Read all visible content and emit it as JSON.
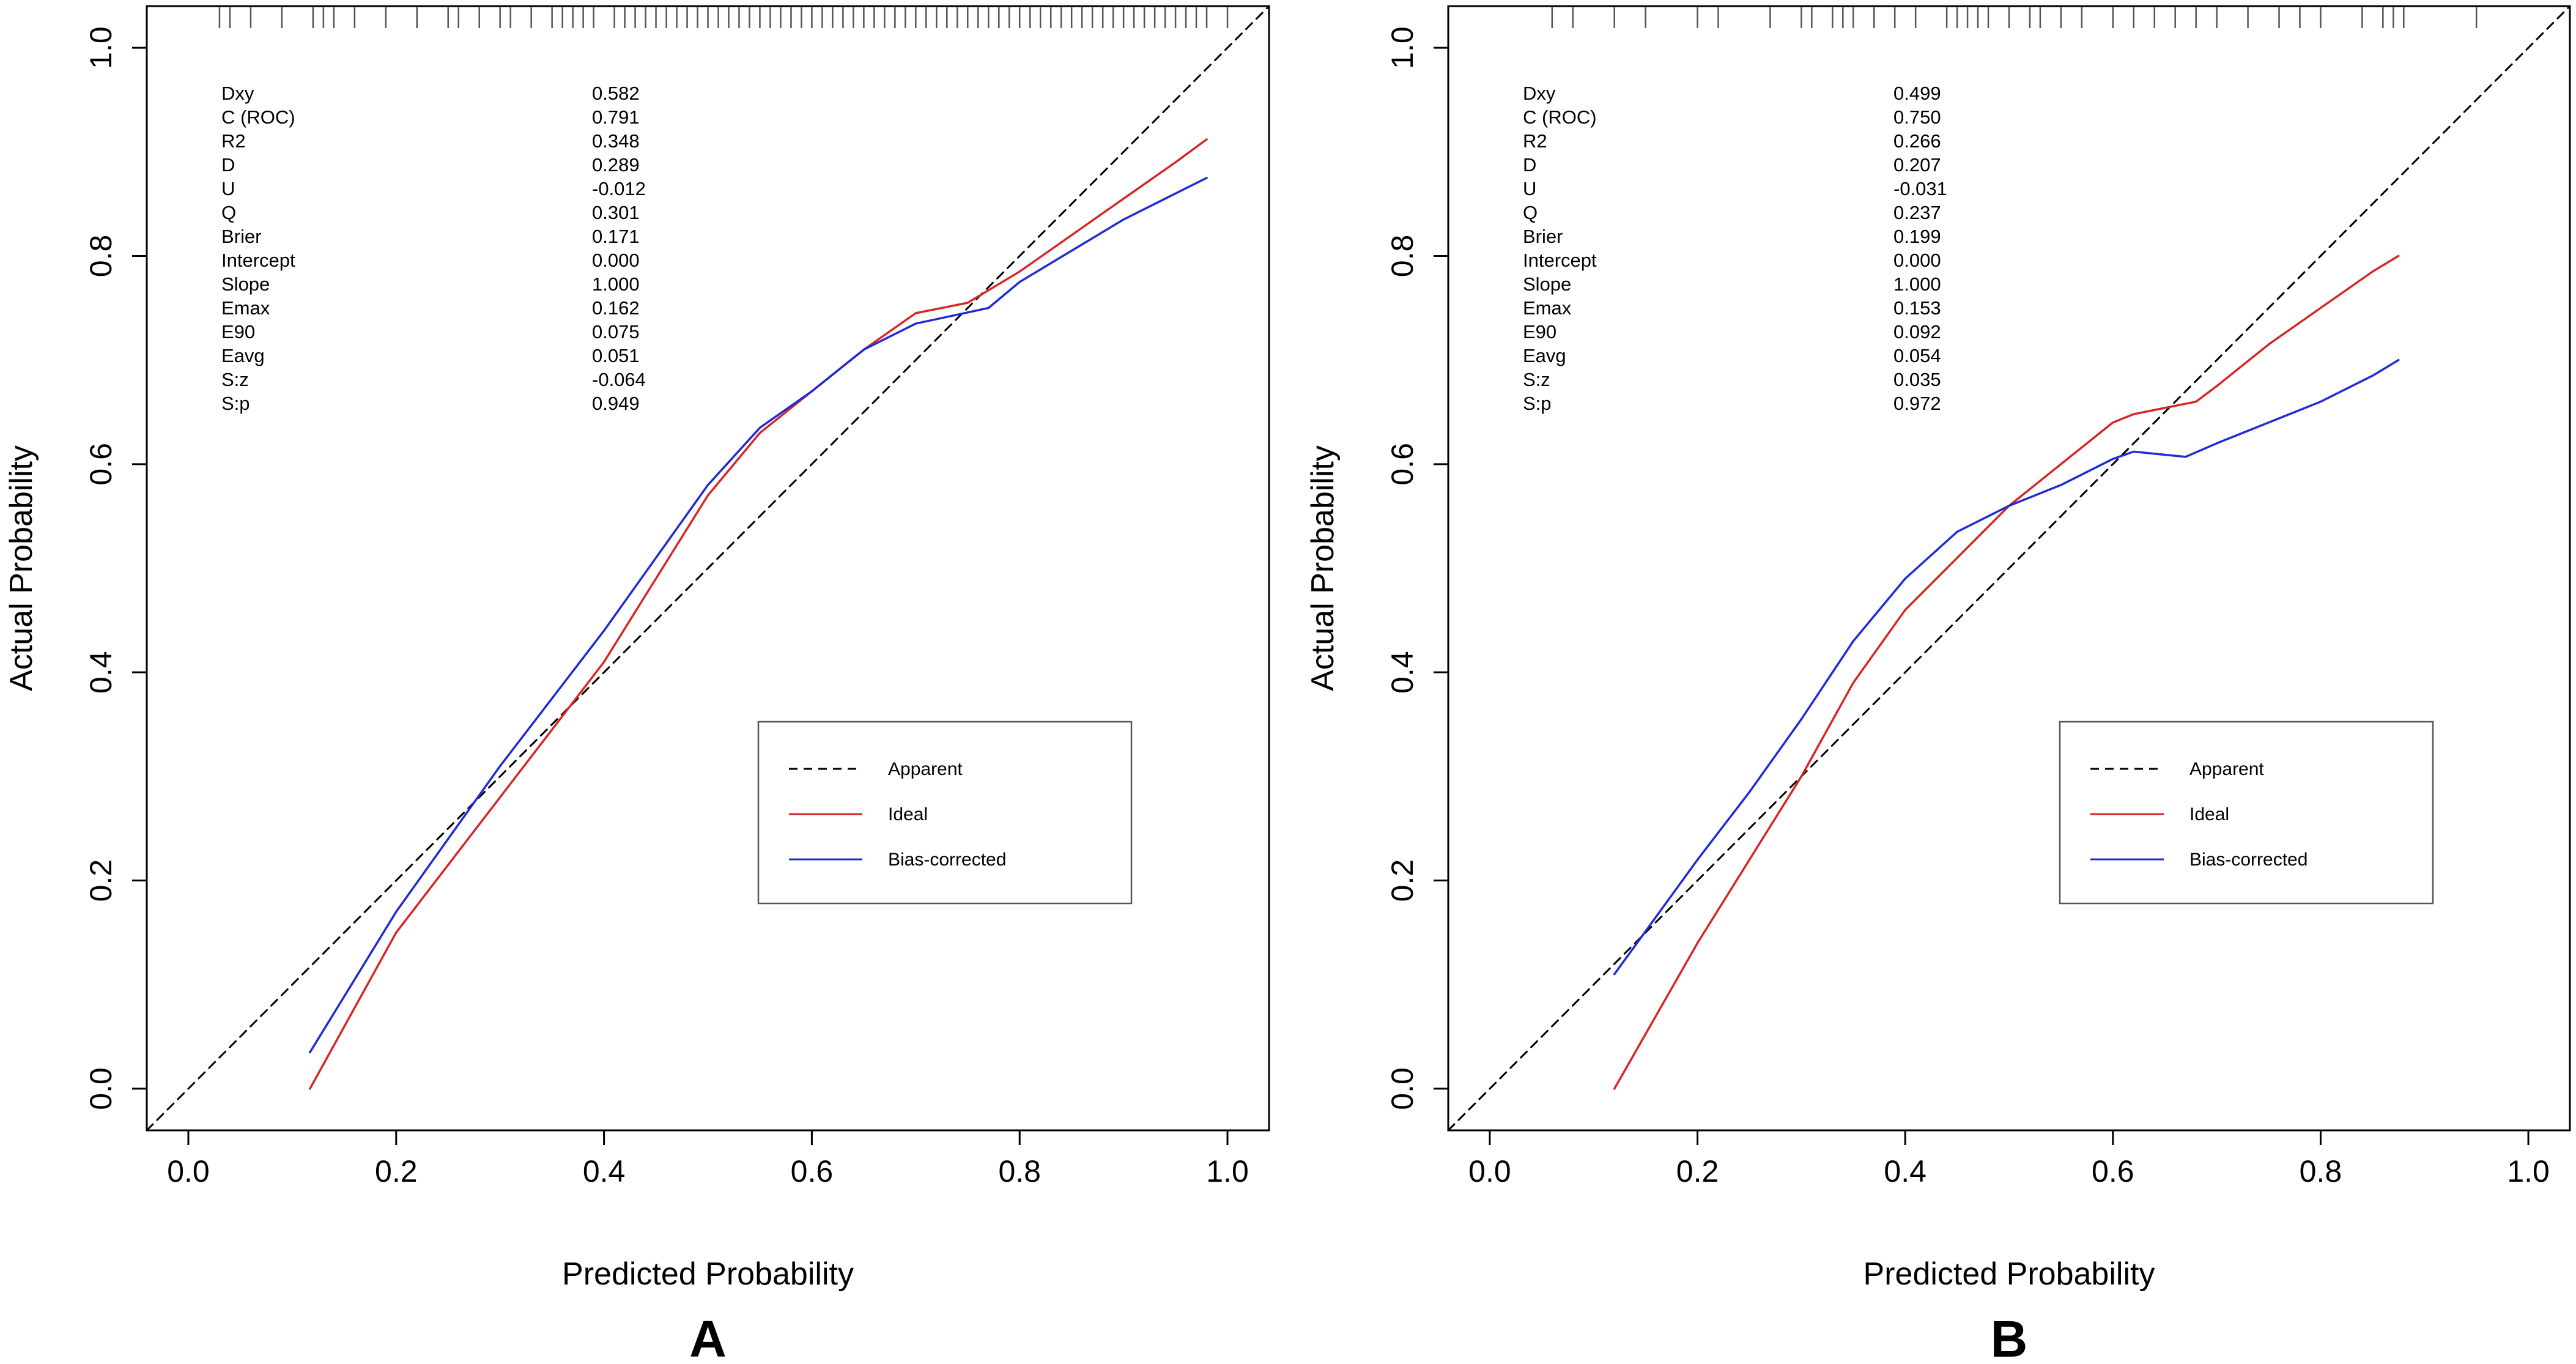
{
  "chart_data": [
    {
      "type": "line",
      "panel_label": "A",
      "xlabel": "Predicted Probability",
      "ylabel": "Actual Probability",
      "xlim": [
        -0.04,
        1.04
      ],
      "ylim": [
        -0.04,
        1.04
      ],
      "xticks": [
        "0.0",
        "0.2",
        "0.4",
        "0.6",
        "0.8",
        "1.0"
      ],
      "yticks": [
        "0.0",
        "0.2",
        "0.4",
        "0.6",
        "0.8",
        "1.0"
      ],
      "grid": false,
      "legend_position": "lower-right",
      "stats": [
        {
          "name": "Dxy",
          "value": "0.582"
        },
        {
          "name": "C (ROC)",
          "value": "0.791"
        },
        {
          "name": "R2",
          "value": "0.348"
        },
        {
          "name": "D",
          "value": "0.289"
        },
        {
          "name": "U",
          "value": "-0.012"
        },
        {
          "name": "Q",
          "value": "0.301"
        },
        {
          "name": "Brier",
          "value": "0.171"
        },
        {
          "name": "Intercept",
          "value": "0.000"
        },
        {
          "name": "Slope",
          "value": "1.000"
        },
        {
          "name": "Emax",
          "value": "0.162"
        },
        {
          "name": "E90",
          "value": "0.075"
        },
        {
          "name": "Eavg",
          "value": "0.051"
        },
        {
          "name": "S:z",
          "value": "-0.064"
        },
        {
          "name": "S:p",
          "value": "0.949"
        }
      ],
      "rug": [
        0.03,
        0.04,
        0.06,
        0.09,
        0.12,
        0.13,
        0.14,
        0.16,
        0.19,
        0.22,
        0.25,
        0.26,
        0.28,
        0.3,
        0.31,
        0.33,
        0.35,
        0.36,
        0.37,
        0.38,
        0.39,
        0.41,
        0.42,
        0.43,
        0.44,
        0.45,
        0.46,
        0.47,
        0.48,
        0.49,
        0.5,
        0.51,
        0.52,
        0.53,
        0.54,
        0.55,
        0.56,
        0.57,
        0.58,
        0.59,
        0.6,
        0.61,
        0.62,
        0.63,
        0.64,
        0.65,
        0.66,
        0.67,
        0.68,
        0.69,
        0.7,
        0.71,
        0.72,
        0.73,
        0.74,
        0.75,
        0.76,
        0.77,
        0.78,
        0.79,
        0.8,
        0.81,
        0.82,
        0.83,
        0.84,
        0.85,
        0.86,
        0.87,
        0.88,
        0.89,
        0.9,
        0.91,
        0.92,
        0.93,
        0.94,
        0.95,
        0.96,
        0.97,
        0.98,
        1.0
      ],
      "series": [
        {
          "name": "Apparent",
          "color": "#000000",
          "dash": true,
          "x": [
            -0.04,
            1.04
          ],
          "y": [
            -0.04,
            1.04
          ]
        },
        {
          "name": "Ideal",
          "color": "#d62728",
          "dash": false,
          "x": [
            0.117,
            0.2,
            0.3,
            0.4,
            0.45,
            0.5,
            0.55,
            0.6,
            0.65,
            0.7,
            0.75,
            0.8,
            0.85,
            0.9,
            0.95,
            0.98
          ],
          "y": [
            0.0,
            0.15,
            0.28,
            0.41,
            0.49,
            0.57,
            0.63,
            0.67,
            0.71,
            0.745,
            0.755,
            0.785,
            0.82,
            0.855,
            0.89,
            0.912
          ]
        },
        {
          "name": "Bias-corrected",
          "color": "#1f2bd6",
          "dash": false,
          "x": [
            0.117,
            0.2,
            0.3,
            0.4,
            0.45,
            0.5,
            0.55,
            0.6,
            0.65,
            0.7,
            0.77,
            0.8,
            0.85,
            0.9,
            0.95,
            0.98
          ],
          "y": [
            0.035,
            0.17,
            0.31,
            0.44,
            0.51,
            0.58,
            0.635,
            0.67,
            0.71,
            0.735,
            0.75,
            0.775,
            0.805,
            0.835,
            0.86,
            0.875
          ]
        }
      ]
    },
    {
      "type": "line",
      "panel_label": "B",
      "xlabel": "Predicted Probability",
      "ylabel": "Actual Probability",
      "xlim": [
        -0.04,
        1.04
      ],
      "ylim": [
        -0.04,
        1.04
      ],
      "xticks": [
        "0.0",
        "0.2",
        "0.4",
        "0.6",
        "0.8",
        "1.0"
      ],
      "yticks": [
        "0.0",
        "0.2",
        "0.4",
        "0.6",
        "0.8",
        "1.0"
      ],
      "grid": false,
      "legend_position": "lower-right",
      "stats": [
        {
          "name": "Dxy",
          "value": "0.499"
        },
        {
          "name": "C (ROC)",
          "value": "0.750"
        },
        {
          "name": "R2",
          "value": "0.266"
        },
        {
          "name": "D",
          "value": "0.207"
        },
        {
          "name": "U",
          "value": "-0.031"
        },
        {
          "name": "Q",
          "value": "0.237"
        },
        {
          "name": "Brier",
          "value": "0.199"
        },
        {
          "name": "Intercept",
          "value": "0.000"
        },
        {
          "name": "Slope",
          "value": "1.000"
        },
        {
          "name": "Emax",
          "value": "0.153"
        },
        {
          "name": "E90",
          "value": "0.092"
        },
        {
          "name": "Eavg",
          "value": "0.054"
        },
        {
          "name": "S:z",
          "value": "0.035"
        },
        {
          "name": "S:p",
          "value": "0.972"
        }
      ],
      "rug": [
        0.06,
        0.08,
        0.12,
        0.15,
        0.2,
        0.22,
        0.27,
        0.3,
        0.31,
        0.33,
        0.34,
        0.35,
        0.37,
        0.39,
        0.41,
        0.44,
        0.45,
        0.46,
        0.47,
        0.48,
        0.5,
        0.52,
        0.53,
        0.55,
        0.57,
        0.6,
        0.62,
        0.64,
        0.66,
        0.68,
        0.7,
        0.73,
        0.76,
        0.78,
        0.8,
        0.84,
        0.86,
        0.87,
        0.88,
        0.95
      ],
      "series": [
        {
          "name": "Apparent",
          "color": "#000000",
          "dash": true,
          "x": [
            -0.04,
            1.04
          ],
          "y": [
            -0.04,
            1.04
          ]
        },
        {
          "name": "Ideal",
          "color": "#d62728",
          "dash": false,
          "x": [
            0.12,
            0.2,
            0.3,
            0.35,
            0.4,
            0.45,
            0.5,
            0.55,
            0.6,
            0.62,
            0.68,
            0.7,
            0.75,
            0.8,
            0.85,
            0.875
          ],
          "y": [
            0.0,
            0.14,
            0.3,
            0.39,
            0.46,
            0.51,
            0.56,
            0.6,
            0.64,
            0.648,
            0.66,
            0.675,
            0.715,
            0.75,
            0.785,
            0.8
          ]
        },
        {
          "name": "Bias-corrected",
          "color": "#1f2bd6",
          "dash": false,
          "x": [
            0.12,
            0.2,
            0.25,
            0.3,
            0.35,
            0.4,
            0.45,
            0.5,
            0.55,
            0.6,
            0.62,
            0.67,
            0.7,
            0.75,
            0.8,
            0.85,
            0.875
          ],
          "y": [
            0.11,
            0.22,
            0.285,
            0.355,
            0.43,
            0.49,
            0.535,
            0.56,
            0.58,
            0.605,
            0.612,
            0.607,
            0.62,
            0.64,
            0.66,
            0.685,
            0.7
          ]
        }
      ]
    }
  ]
}
